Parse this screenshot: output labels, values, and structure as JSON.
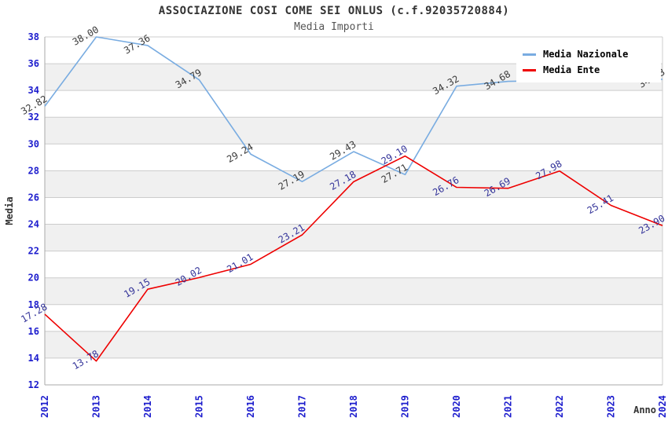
{
  "header": {
    "title": "ASSOCIAZIONE COSI COME SEI ONLUS (c.f.92035720884)",
    "subtitle": "Media Importi"
  },
  "legend": {
    "items": [
      {
        "label": "Media Nazionale",
        "color": "#79ACE1"
      },
      {
        "label": "Media Ente",
        "color": "#EE0000"
      }
    ]
  },
  "axes": {
    "y_label": "Media",
    "x_label": "Anno",
    "y_tick_color": "#1C1CCD",
    "x_tick_color": "#1C1CCD"
  },
  "colors": {
    "band": "#F0F0F0",
    "grid": "#CCCCCC",
    "axis": "#AAAAAA",
    "tick_text": "#1C1CCD",
    "axis_title_text": "#333333"
  },
  "chart_data": {
    "type": "line",
    "title": "ASSOCIAZIONE COSI COME SEI ONLUS (c.f.92035720884)",
    "subtitle": "Media Importi",
    "xlabel": "Anno",
    "ylabel": "Media",
    "ylim": [
      12,
      38
    ],
    "y_ticks": [
      12,
      14,
      16,
      18,
      20,
      22,
      24,
      26,
      28,
      30,
      32,
      34,
      36,
      38
    ],
    "x": [
      "2012",
      "2013",
      "2014",
      "2015",
      "2016",
      "2017",
      "2018",
      "2019",
      "2020",
      "2021",
      "2022",
      "2023",
      "2024"
    ],
    "band_upper_values": [
      36,
      32,
      28,
      24,
      20,
      16
    ],
    "grid": "horizontal",
    "legend_position": "top-right",
    "series": [
      {
        "name": "Media Nazionale",
        "color": "#79ACE1",
        "label_color": "#3A3A3A",
        "values": [
          32.82,
          38.0,
          37.36,
          34.79,
          29.24,
          27.19,
          29.43,
          27.71,
          34.32,
          34.68,
          34.75,
          34.79,
          34.83
        ],
        "labels": [
          "32.82",
          "38.00",
          "37.36",
          "34.79",
          "29.24",
          "27.19",
          "29.43",
          "27.71",
          "34.32",
          "34.68",
          "",
          "",
          "34.83"
        ]
      },
      {
        "name": "Media Ente",
        "color": "#EE0000",
        "label_color": "#333399",
        "values": [
          17.28,
          13.78,
          19.15,
          20.02,
          21.01,
          23.21,
          27.18,
          29.1,
          26.76,
          26.69,
          27.98,
          25.41,
          23.9
        ],
        "labels": [
          "17.28",
          "13.78",
          "19.15",
          "20.02",
          "21.01",
          "23.21",
          "27.18",
          "29.10",
          "26.76",
          "26.69",
          "27.98",
          "25.41",
          "23.90"
        ]
      }
    ]
  }
}
